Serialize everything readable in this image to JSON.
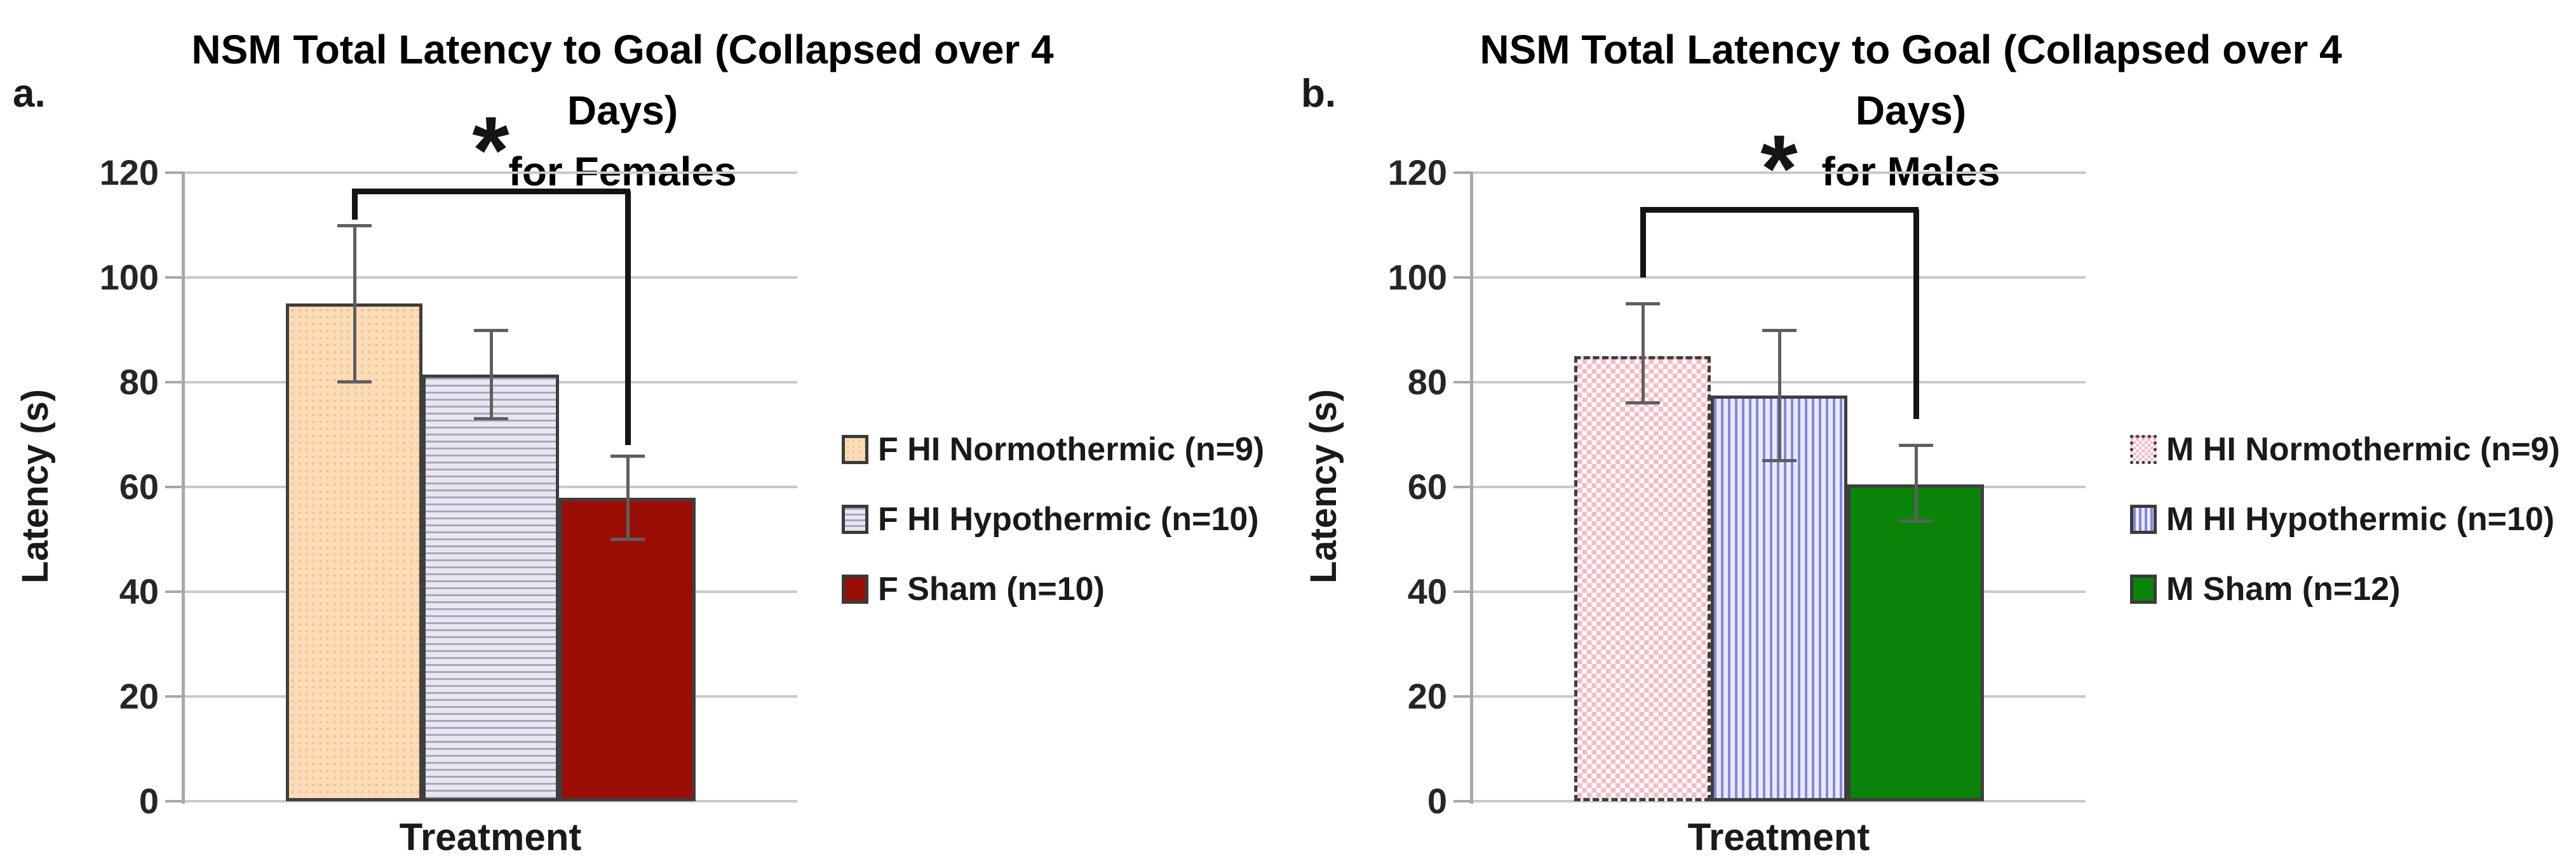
{
  "chart_data": [
    {
      "type": "bar",
      "panel_label": "a.",
      "title_lines": [
        "NSM Total Latency to Goal (Collapsed over 4 Days)",
        "for Females"
      ],
      "xlabel": "Treatment",
      "ylabel": "Latency (s)",
      "ylim": [
        0,
        120
      ],
      "yticks": [
        0,
        20,
        40,
        60,
        80,
        100,
        120
      ],
      "grid": true,
      "legend_position": "right",
      "categories": [
        "F HI Normothermic (n=9)",
        "F HI Hypothermic (n=10)",
        "F Sham (n=10)"
      ],
      "values": [
        95,
        81.5,
        58
      ],
      "error_low": [
        80,
        73,
        50
      ],
      "error_high": [
        110,
        90,
        66
      ],
      "legend": [
        {
          "label": "F HI Normothermic (n=9)",
          "pattern": "dots",
          "fill": "#fbdcb6",
          "accent": "#f0bd8f",
          "border_style": "solid"
        },
        {
          "label": "F HI Hypothermic (n=10)",
          "pattern": "hlines",
          "fill": "#e8e7f0",
          "accent": "#a9a6bd",
          "border_style": "solid"
        },
        {
          "label": "F Sham (n=10)",
          "pattern": "solid",
          "fill": "#9a0e05",
          "accent": "#9a0e05",
          "border_style": "solid"
        }
      ],
      "significance": {
        "between": [
          0,
          2
        ],
        "label": "*",
        "bracket_y": 116.5,
        "drop_left_to": 111,
        "drop_right_to": 68
      }
    },
    {
      "type": "bar",
      "panel_label": "b.",
      "title_lines": [
        "NSM Total Latency to Goal (Collapsed over 4 Days)",
        "for Males"
      ],
      "xlabel": "Treatment",
      "ylabel": "Latency (s)",
      "ylim": [
        0,
        120
      ],
      "yticks": [
        0,
        20,
        40,
        60,
        80,
        100,
        120
      ],
      "grid": true,
      "legend_position": "right",
      "categories": [
        "M HI Normothermic (n=9)",
        "M HI Hypothermic (n=10)",
        "M Sham (n=12)"
      ],
      "values": [
        85,
        77.5,
        60.5
      ],
      "error_low": [
        76,
        65,
        53.5
      ],
      "error_high": [
        95,
        90,
        68
      ],
      "legend": [
        {
          "label": "M HI Normothermic (n=9)",
          "pattern": "checker",
          "fill": "#fffcfc",
          "accent": "#f5bbc5",
          "border_style": "dashed"
        },
        {
          "label": "M HI Hypothermic (n=10)",
          "pattern": "vlines",
          "fill": "#e9e9fb",
          "accent": "#8287de",
          "border_style": "solid"
        },
        {
          "label": "M Sham (n=12)",
          "pattern": "solid",
          "fill": "#0a8408",
          "accent": "#0a8408",
          "border_style": "solid"
        }
      ],
      "significance": {
        "between": [
          0,
          2
        ],
        "label": "*",
        "bracket_y": 113,
        "drop_left_to": 100,
        "drop_right_to": 73
      }
    }
  ],
  "colors": {
    "gridline": "#c9c9c9",
    "axis_line": "#a8a8a8",
    "error_bar": "#5f5f5f",
    "bracket": "#141414",
    "bar_border": "#3e3e3e"
  }
}
